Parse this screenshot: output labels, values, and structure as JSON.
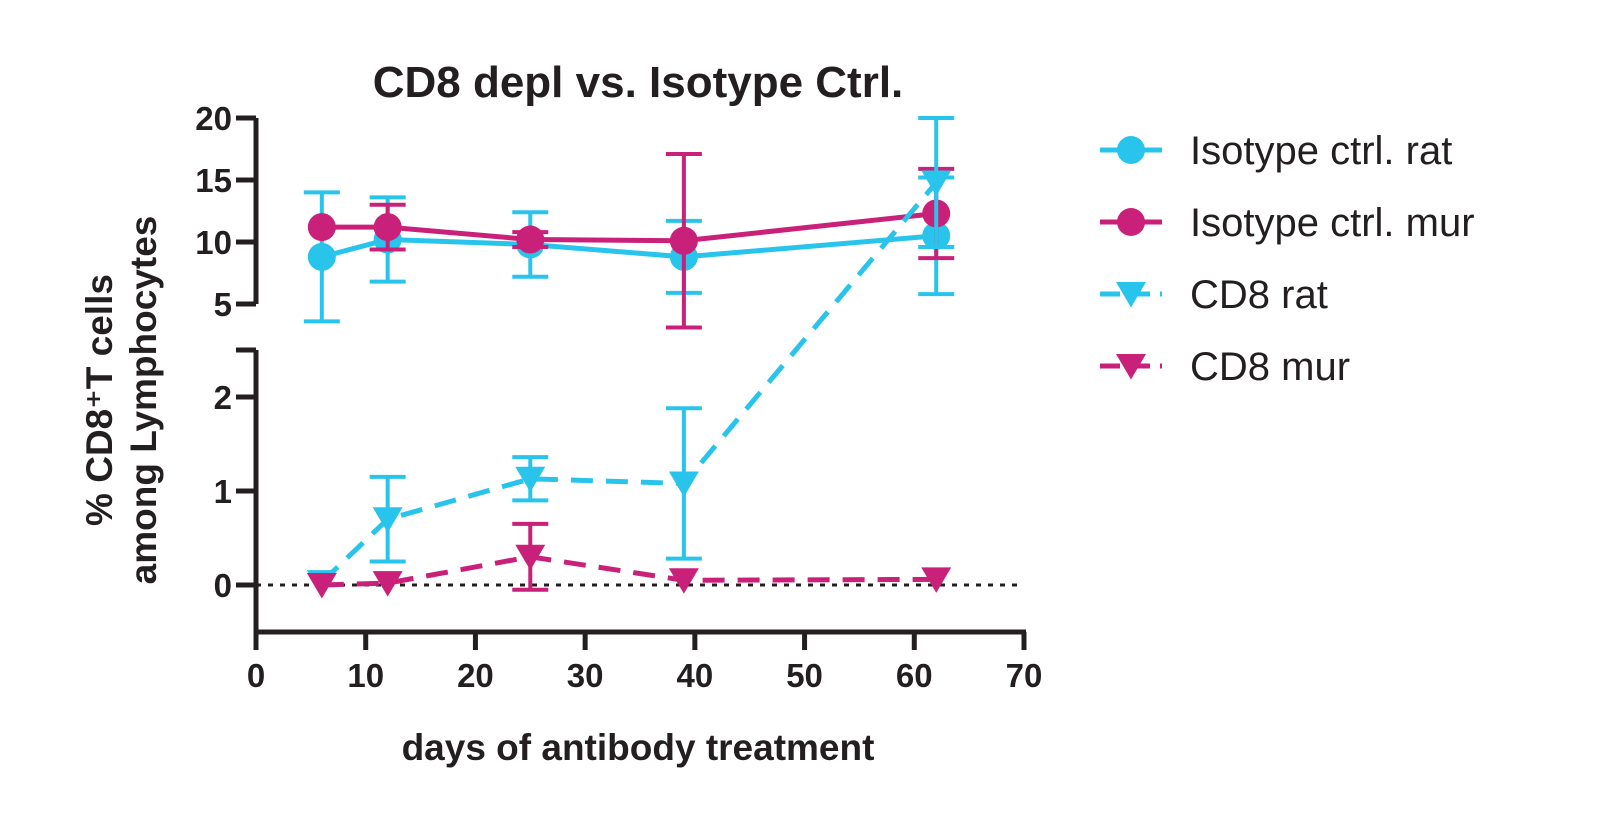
{
  "chart_data": {
    "type": "line",
    "title": "CD8 depl vs. Isotype Ctrl.",
    "xlabel": "days of antibody treatment",
    "ylabel": [
      "% CD8⁺T cells",
      "among Lymphocytes"
    ],
    "x_ticks": [
      "0",
      "10",
      "20",
      "30",
      "40",
      "50",
      "60",
      "70"
    ],
    "y_ticks_upper": [
      "20",
      "15",
      "10",
      "5"
    ],
    "y_ticks_lower": [
      "2",
      "1",
      "0"
    ],
    "xlim": [
      0,
      70
    ],
    "ylim_upper": [
      5,
      20
    ],
    "ylim_lower": [
      -0.5,
      2.5
    ],
    "y_axis_break": [
      2.5,
      5
    ],
    "reference_line_y": 0,
    "legend_position": "right",
    "series": [
      {
        "name": "Isotype ctrl. rat",
        "color": "#29c4ec",
        "marker": "circle",
        "line": "solid",
        "x": [
          6,
          12,
          25,
          39,
          62
        ],
        "y": [
          8.8,
          10.2,
          9.8,
          8.8,
          10.5
        ],
        "err": [
          5.2,
          3.4,
          2.6,
          2.9,
          4.7
        ]
      },
      {
        "name": "Isotype ctrl. mur",
        "color": "#c9217a",
        "marker": "circle",
        "line": "solid",
        "x": [
          6,
          12,
          25,
          39,
          62
        ],
        "y": [
          11.2,
          11.2,
          10.2,
          10.1,
          12.3
        ],
        "err": [
          0,
          1.8,
          0.6,
          7.0,
          3.6
        ]
      },
      {
        "name": "CD8 rat",
        "color": "#29c4ec",
        "marker": "triangle-down",
        "line": "dashed",
        "x": [
          6,
          12,
          25,
          39,
          62
        ],
        "y": [
          0.03,
          0.7,
          1.13,
          1.08,
          14.8
        ],
        "err": [
          0,
          0.45,
          0.23,
          0.8,
          5.2
        ]
      },
      {
        "name": "CD8 mur",
        "color": "#c9217a",
        "marker": "triangle-down",
        "line": "dashed",
        "x": [
          6,
          12,
          25,
          39,
          62
        ],
        "y": [
          0,
          0.02,
          0.3,
          0.05,
          0.06
        ],
        "err": [
          0,
          0,
          0.35,
          0,
          0
        ]
      }
    ]
  }
}
